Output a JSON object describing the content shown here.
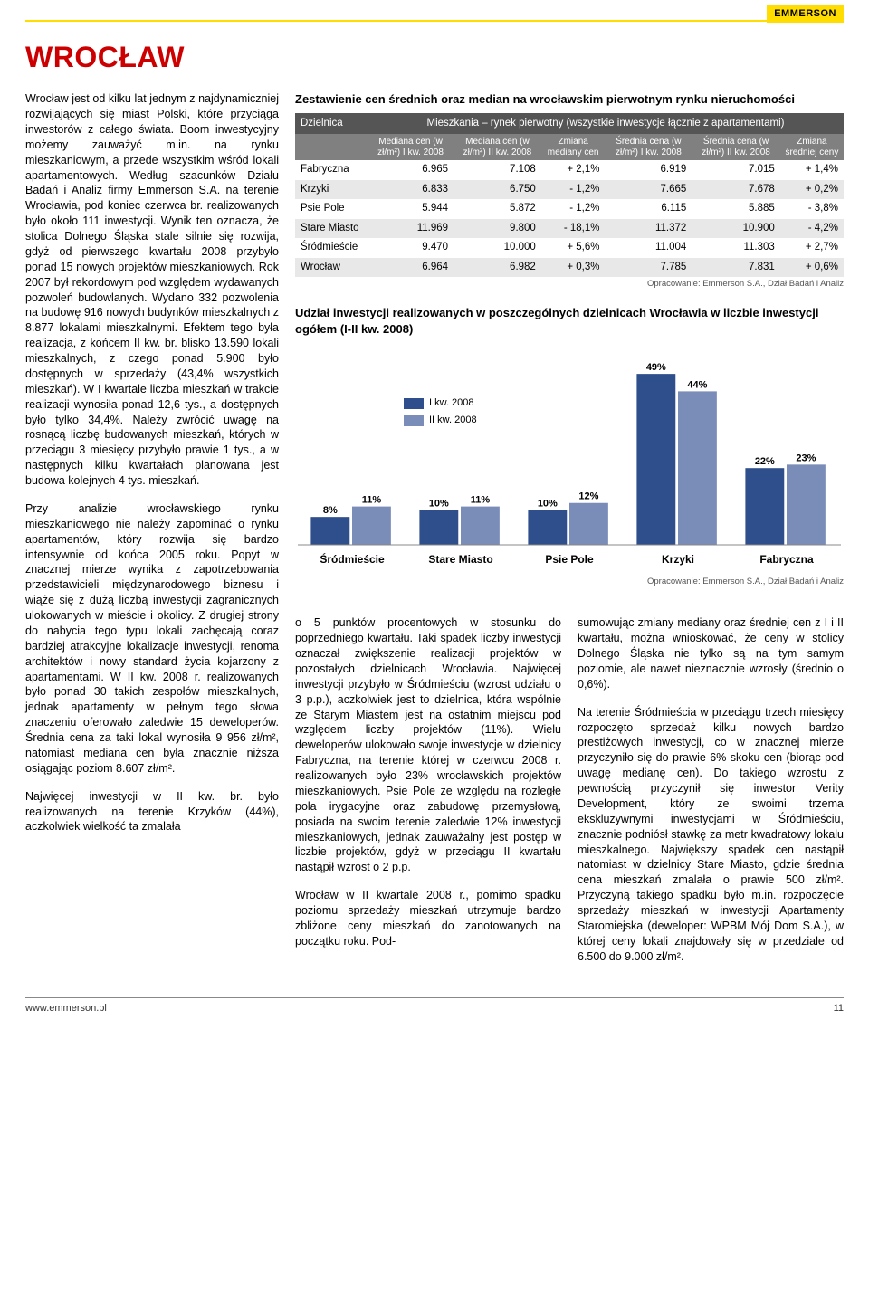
{
  "brand": "EMMERSON",
  "city": "WROCŁAW",
  "left": {
    "p1": "Wrocław jest od kilku lat jednym z najdynamiczniej rozwijających się miast Polski, które przyciąga inwestorów z całego świata. Boom inwestycyjny możemy zauważyć m.in. na rynku mieszkaniowym, a przede wszystkim wśród lokali apartamentowych. Według szacunków Działu Badań i Analiz firmy Emmerson S.A. na terenie Wrocławia, pod koniec czerwca br. realizowanych było około 111 inwestycji. Wynik ten oznacza, że stolica Dolnego Śląska stale silnie się rozwija, gdyż od pierwszego kwartału 2008 przybyło ponad 15 nowych projektów mieszkaniowych. Rok 2007 był rekordowym pod względem wydawanych pozwoleń budowlanych. Wydano 332 pozwolenia na budowę 916 nowych budynków mieszkalnych z 8.877 lokalami mieszkalnymi. Efektem tego była realizacja, z końcem II kw. br. blisko 13.590 lokali mieszkalnych, z czego ponad 5.900 było dostępnych w sprzedaży (43,4% wszystkich mieszkań). W I kwartale liczba mieszkań w trakcie realizacji wynosiła ponad 12,6 tys., a dostępnych było tylko 34,4%. Należy zwrócić uwagę na rosnącą liczbę budowanych mieszkań, których w przeciągu 3 miesięcy przybyło prawie 1 tys., a w następnych kilku kwartałach planowana jest budowa kolejnych 4 tys. mieszkań.",
    "p2": "Przy analizie wrocławskiego rynku mieszkaniowego nie należy zapominać o rynku apartamentów, który rozwija się bardzo intensywnie od końca 2005 roku. Popyt w znacznej mierze wynika z zapotrzebowania przedstawicieli międzynarodowego biznesu i wiąże się z dużą liczbą inwestycji zagranicznych ulokowanych w mieście i okolicy. Z drugiej strony do nabycia tego typu lokali zachęcają coraz bardziej atrakcyjne lokalizacje inwestycji, renoma architektów i nowy standard życia kojarzony z apartamentami. W II kw. 2008 r. realizowanych było ponad 30 takich zespołów mieszkalnych, jednak apartamenty w pełnym tego słowa znaczeniu oferowało zaledwie 15 deweloperów. Średnia cena za taki lokal wynosiła 9 956 zł/m², natomiast mediana cen była znacznie niższa osiągając poziom 8.607 zł/m².",
    "p3": "Najwięcej inwestycji w II kw. br. było realizowanych na terenie Krzyków (44%), aczkolwiek wielkość ta zmalała"
  },
  "table": {
    "title": "Zestawienie cen średnich oraz median na wrocławskim pierwotnym rynku nieruchomości",
    "hdr_dzielnica": "Dzielnica",
    "hdr_span": "Mieszkania – rynek pierwotny (wszystkie inwestycje łącznie z apartamentami)",
    "cols": [
      "Mediana cen (w zł/m²) I kw. 2008",
      "Mediana cen (w zł/m²) II kw. 2008",
      "Zmiana mediany cen",
      "Średnia cena (w zł/m²) I kw. 2008",
      "Średnia cena (w zł/m²) II kw. 2008",
      "Zmiana średniej ceny"
    ],
    "rows": [
      [
        "Fabryczna",
        "6.965",
        "7.108",
        "+ 2,1%",
        "6.919",
        "7.015",
        "+ 1,4%"
      ],
      [
        "Krzyki",
        "6.833",
        "6.750",
        "- 1,2%",
        "7.665",
        "7.678",
        "+ 0,2%"
      ],
      [
        "Psie Pole",
        "5.944",
        "5.872",
        "- 1,2%",
        "6.115",
        "5.885",
        "- 3,8%"
      ],
      [
        "Stare Miasto",
        "11.969",
        "9.800",
        "- 18,1%",
        "11.372",
        "10.900",
        "- 4,2%"
      ],
      [
        "Śródmieście",
        "9.470",
        "10.000",
        "+ 5,6%",
        "11.004",
        "11.303",
        "+ 2,7%"
      ],
      [
        "Wrocław",
        "6.964",
        "6.982",
        "+ 0,3%",
        "7.785",
        "7.831",
        "+ 0,6%"
      ]
    ],
    "source": "Opracowanie: Emmerson S.A., Dział Badań i Analiz"
  },
  "chart": {
    "title": "Udział inwestycji realizowanych w poszczególnych dzielnicach Wrocławia w liczbie inwestycji ogółem (I-II kw. 2008)",
    "type": "bar",
    "legend": [
      {
        "label": "I kw. 2008",
        "color": "#2f4e8c"
      },
      {
        "label": "II kw. 2008",
        "color": "#7a8db8"
      }
    ],
    "categories": [
      "Śródmieście",
      "Stare Miasto",
      "Psie Pole",
      "Krzyki",
      "Fabryczna"
    ],
    "series": [
      {
        "name": "I kw. 2008",
        "color": "#2f4e8c",
        "values": [
          8,
          10,
          10,
          49,
          22
        ]
      },
      {
        "name": "II kw. 2008",
        "color": "#7a8db8",
        "values": [
          11,
          11,
          12,
          44,
          23
        ]
      }
    ],
    "value_labels": [
      [
        "8%",
        "11%"
      ],
      [
        "10%",
        "11%"
      ],
      [
        "10%",
        "12%"
      ],
      [
        "49%",
        "44%"
      ],
      [
        "22%",
        "23%"
      ]
    ],
    "ylim": [
      0,
      55
    ],
    "background_color": "#ffffff",
    "label_fontsize": 11,
    "bar_width": 0.38,
    "source": "Opracowanie: Emmerson S.A., Dział Badań i Analiz"
  },
  "lower": {
    "c1": "o 5 punktów procentowych w stosunku do poprzedniego kwartału. Taki spadek liczby inwestycji oznaczał zwiększenie realizacji projektów w pozostałych dzielnicach Wrocławia. Najwięcej inwestycji przybyło w Śródmieściu (wzrost udziału o 3 p.p.), aczkolwiek jest to dzielnica, która wspólnie ze Starym Miastem jest na ostatnim miejscu pod względem liczby projektów (11%). Wielu deweloperów ulokowało swoje inwestycje w dzielnicy Fabryczna, na terenie której w czerwcu 2008 r. realizowanych było 23% wrocławskich projektów mieszkaniowych. Psie Pole ze względu na rozległe pola irygacyjne oraz zabudowę przemysłową, posiada na swoim terenie zaledwie 12% inwestycji mieszkaniowych, jednak zauważalny jest postęp w liczbie projektów, gdyż w przeciągu II kwartału nastąpił wzrost o 2 p.p.",
    "c1b": "Wrocław w II kwartale 2008 r., pomimo spadku poziomu sprzedaży mieszkań utrzymuje bardzo zbliżone ceny mieszkań do zanotowanych na początku roku. Pod-",
    "c2": "sumowując zmiany mediany oraz średniej cen z I i II kwartału, można wnioskować, że ceny w stolicy Dolnego Śląska nie tylko są na tym samym poziomie, ale nawet nieznacznie wzrosły (średnio o 0,6%).",
    "c2b": "Na terenie Śródmieścia w przeciągu trzech miesięcy rozpoczęto sprzedaż kilku nowych bardzo prestiżowych inwestycji, co w znacznej mierze przyczyniło się do prawie 6% skoku cen (biorąc pod uwagę medianę cen). Do takiego wzrostu z pewnością przyczynił się inwestor Verity Development, który ze swoimi trzema ekskluzywnymi inwestycjami w Śródmieściu, znacznie podniósł stawkę za metr kwadratowy lokalu mieszkalnego. Największy spadek cen nastąpił natomiast w dzielnicy Stare Miasto, gdzie średnia cena mieszkań zmalała o prawie 500 zł/m². Przyczyną takiego spadku było m.in. rozpoczęcie sprzedaży mieszkań w inwestycji Apartamenty Staromiejska (deweloper: WPBM Mój Dom S.A.), w której ceny lokali znajdowały się w przedziale od 6.500 do 9.000 zł/m²."
  },
  "footer": {
    "url": "www.emmerson.pl",
    "page": "11"
  }
}
